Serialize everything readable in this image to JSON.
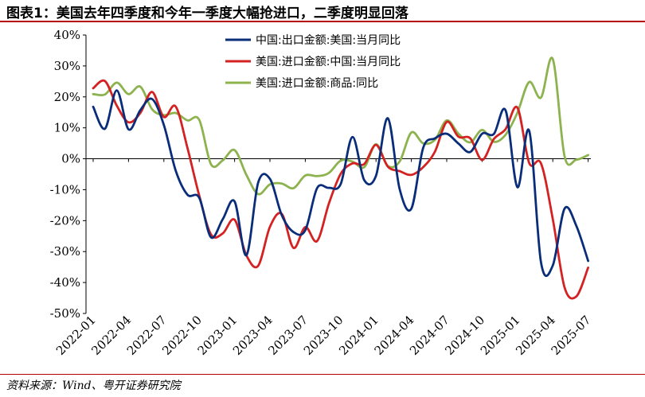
{
  "title": "图表1：美国去年四季度和今年一季度大幅抢进口，二季度明显回落",
  "source": "资料来源：Wind、粤开证券研究院",
  "chart_data": {
    "type": "line",
    "title": "图表1：美国去年四季度和今年一季度大幅抢进口，二季度明显回落",
    "xlabel": "",
    "ylabel": "",
    "ylim": [
      -50,
      40
    ],
    "y_ticks": [
      "40%",
      "30%",
      "20%",
      "10%",
      "0%",
      "-10%",
      "-20%",
      "-30%",
      "-40%",
      "-50%"
    ],
    "x_ticks": [
      "2022-01",
      "2022-04",
      "2022-07",
      "2022-10",
      "2023-01",
      "2023-04",
      "2023-07",
      "2023-10",
      "2024-01",
      "2024-04",
      "2024-07",
      "2024-10",
      "2025-01",
      "2025-04",
      "2025-07"
    ],
    "grid": false,
    "legend_position": "top",
    "x": [
      "2022-01",
      "2022-02",
      "2022-03",
      "2022-04",
      "2022-05",
      "2022-06",
      "2022-07",
      "2022-08",
      "2022-09",
      "2022-10",
      "2022-11",
      "2022-12",
      "2023-01",
      "2023-02",
      "2023-03",
      "2023-04",
      "2023-05",
      "2023-06",
      "2023-07",
      "2023-08",
      "2023-09",
      "2023-10",
      "2023-11",
      "2023-12",
      "2024-01",
      "2024-02",
      "2024-03",
      "2024-04",
      "2024-05",
      "2024-06",
      "2024-07",
      "2024-08",
      "2024-09",
      "2024-10",
      "2024-11",
      "2024-12",
      "2025-01",
      "2025-02",
      "2025-03",
      "2025-04",
      "2025-05",
      "2025-06",
      "2025-07",
      "2025-08"
    ],
    "series": [
      {
        "name": "中国:出口金额:美国:当月同比",
        "color": "#0a2d7a",
        "values": [
          16.8,
          9.7,
          22.1,
          9.5,
          15.7,
          19.3,
          10.9,
          -3.8,
          -11.6,
          -12.6,
          -25.4,
          -19.5,
          -13.8,
          -31.2,
          -7.7,
          -6.5,
          -18.2,
          -23.7,
          -23.1,
          -9.5,
          -9.4,
          -8.2,
          7.0,
          -6.9,
          -5.5,
          13.1,
          -9.7,
          -16.1,
          3.5,
          6.6,
          8.1,
          4.9,
          2.2,
          8.1,
          8.0,
          15.6,
          -9.2,
          9.0,
          -33.5,
          -34.5,
          -16.1,
          -21.7,
          -33.0,
          null
        ]
      },
      {
        "name": "美国:进口金额:中国:当月同比",
        "color": "#d42222",
        "values": [
          22.8,
          25.1,
          17.2,
          11.8,
          14.8,
          21.6,
          13.5,
          16.9,
          3.5,
          -11.9,
          -24.5,
          -24.1,
          -19.7,
          -31.2,
          -34.6,
          -22.0,
          -17.8,
          -28.8,
          -22.1,
          -26.6,
          -14.5,
          -4.9,
          -1.5,
          -1.7,
          4.5,
          -2.5,
          -4.0,
          -5.2,
          -2.7,
          2.3,
          11.9,
          7.1,
          6.6,
          -0.4,
          6.4,
          9.6,
          16.5,
          -1.4,
          -1.5,
          -19.5,
          -41.6,
          -44.5,
          -35.2,
          null
        ]
      },
      {
        "name": "美国:进口金额:商品:同比",
        "color": "#8db34f",
        "values": [
          20.9,
          20.8,
          24.6,
          20.9,
          23.3,
          16.0,
          14.1,
          14.8,
          12.4,
          12.6,
          -1.8,
          -0.5,
          2.8,
          -5.2,
          -11.4,
          -8.3,
          -8.0,
          -9.5,
          -5.4,
          -5.6,
          -4.6,
          -0.6,
          -0.9,
          -2.7,
          4.7,
          -2.3,
          -0.9,
          8.5,
          5.0,
          6.1,
          12.4,
          8.1,
          5.3,
          9.3,
          5.5,
          7.8,
          14.9,
          24.8,
          19.8,
          32.2,
          0.8,
          -0.3,
          1.2,
          null
        ]
      }
    ]
  }
}
